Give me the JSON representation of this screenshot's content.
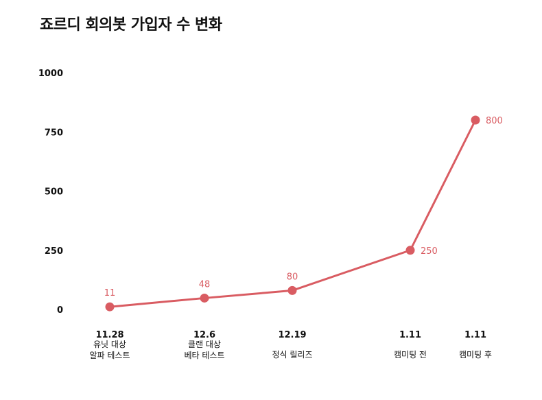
{
  "chart_data": {
    "type": "line",
    "title": "죠르디 회의봇 가입자 수 변화",
    "xlabel": "",
    "ylabel": "",
    "ylim": [
      0,
      1000
    ],
    "yticks": [
      "0",
      "250",
      "500",
      "750",
      "1000"
    ],
    "grid": false,
    "color": "#d95c62",
    "categories": [
      {
        "date": "11.28",
        "lines": [
          "유닛 대상",
          "알파 테스트"
        ]
      },
      {
        "date": "12.6",
        "lines": [
          "클랜 대상",
          "베타 테스트"
        ]
      },
      {
        "date": "12.19",
        "lines": [
          "정식 릴리즈"
        ]
      },
      {
        "date": "1.11",
        "lines": [
          "캠미팅 전"
        ]
      },
      {
        "date": "1.11",
        "lines": [
          "캠미팅 후"
        ]
      }
    ],
    "values": [
      11,
      48,
      80,
      250,
      800
    ],
    "data_labels": [
      "11",
      "48",
      "80",
      "250",
      "800"
    ]
  }
}
